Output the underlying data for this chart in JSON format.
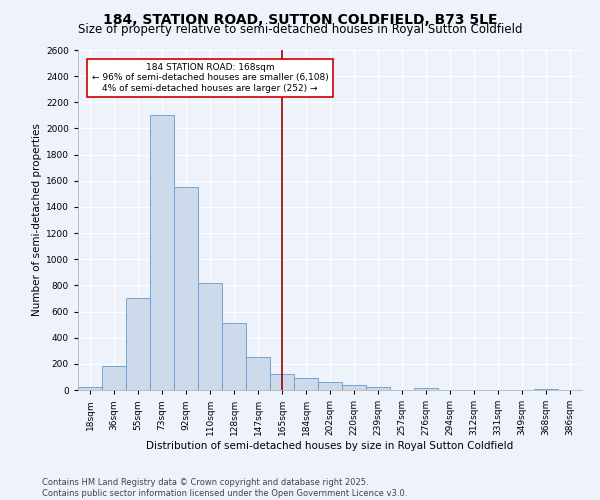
{
  "title": "184, STATION ROAD, SUTTON COLDFIELD, B73 5LE",
  "subtitle": "Size of property relative to semi-detached houses in Royal Sutton Coldfield",
  "xlabel": "Distribution of semi-detached houses by size in Royal Sutton Coldfield",
  "ylabel": "Number of semi-detached properties",
  "bar_color": "#ccdaeb",
  "bar_edge_color": "#6699cc",
  "bin_labels": [
    "18sqm",
    "36sqm",
    "55sqm",
    "73sqm",
    "92sqm",
    "110sqm",
    "128sqm",
    "147sqm",
    "165sqm",
    "184sqm",
    "202sqm",
    "220sqm",
    "239sqm",
    "257sqm",
    "276sqm",
    "294sqm",
    "312sqm",
    "331sqm",
    "349sqm",
    "368sqm",
    "386sqm"
  ],
  "bar_values": [
    20,
    180,
    700,
    2100,
    1550,
    820,
    510,
    250,
    125,
    90,
    65,
    40,
    20,
    0,
    15,
    0,
    0,
    0,
    0,
    10,
    0
  ],
  "property_line_x": 8,
  "bin_edges_raw": [
    0,
    1,
    2,
    3,
    4,
    5,
    6,
    7,
    8,
    9,
    10,
    11,
    12,
    13,
    14,
    15,
    16,
    17,
    18,
    19,
    20,
    21
  ],
  "annotation_text": "184 STATION ROAD: 168sqm\n← 96% of semi-detached houses are smaller (6,108)\n4% of semi-detached houses are larger (252) →",
  "annotation_box_color": "#ffffff",
  "annotation_box_edge": "#cc0000",
  "vline_color": "#990000",
  "ylim": [
    0,
    2600
  ],
  "yticks": [
    0,
    200,
    400,
    600,
    800,
    1000,
    1200,
    1400,
    1600,
    1800,
    2000,
    2200,
    2400,
    2600
  ],
  "footer": "Contains HM Land Registry data © Crown copyright and database right 2025.\nContains public sector information licensed under the Open Government Licence v3.0.",
  "background_color": "#eef2fa",
  "grid_color": "#ffffff",
  "title_fontsize": 10,
  "subtitle_fontsize": 8.5,
  "axis_label_fontsize": 7.5,
  "tick_fontsize": 6.5,
  "footer_fontsize": 6
}
